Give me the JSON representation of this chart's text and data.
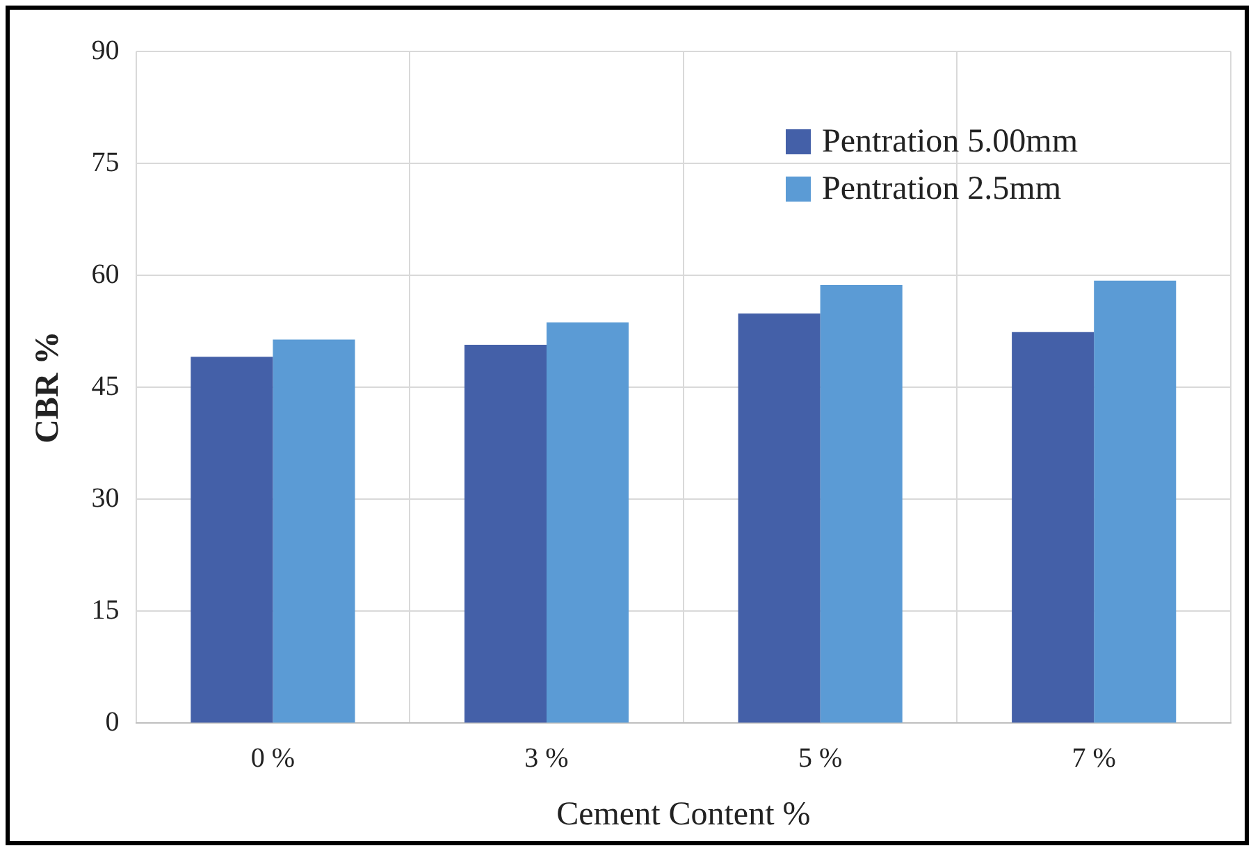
{
  "chart_data": {
    "type": "bar",
    "xlabel": "Cement Content %",
    "ylabel": "CBR %",
    "categories": [
      "0 %",
      "3 %",
      "5 %",
      "7 %"
    ],
    "series": [
      {
        "name": "Pentration 5.00mm",
        "color": "#4460a8",
        "values": [
          49.1,
          50.7,
          54.9,
          52.4
        ]
      },
      {
        "name": "Pentration 2.5mm",
        "color": "#5b9bd5",
        "values": [
          51.4,
          53.7,
          58.7,
          59.3
        ]
      }
    ],
    "ylim": [
      0,
      90
    ],
    "yticks": [
      0,
      15,
      30,
      45,
      60,
      75,
      90
    ],
    "grid": true,
    "legend": "top right"
  }
}
